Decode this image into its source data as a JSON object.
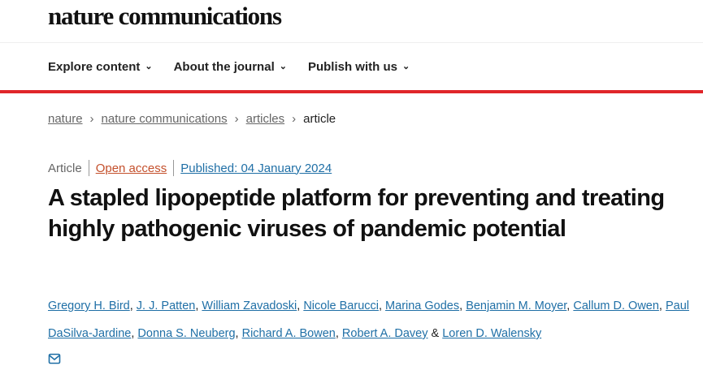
{
  "header": {
    "logo": "nature communications"
  },
  "nav": [
    {
      "label": "Explore content"
    },
    {
      "label": "About the journal"
    },
    {
      "label": "Publish with us"
    }
  ],
  "breadcrumb": [
    {
      "label": "nature"
    },
    {
      "label": "nature communications"
    },
    {
      "label": "articles"
    }
  ],
  "breadcrumb_current": "article",
  "meta": {
    "type": "Article",
    "access": "Open access",
    "published": "Published: 04 January 2024"
  },
  "title": "A stapled lipopeptide platform for preventing and treating highly pathogenic viruses of pandemic potential",
  "authors": [
    "Gregory H. Bird",
    "J. J. Patten",
    "William Zavadoski",
    "Nicole Barucci",
    "Marina Godes",
    "Benjamin M. Moyer",
    "Callum D. Owen",
    "Paul DaSilva-Jardine",
    "Donna S. Neuberg",
    "Richard A. Bowen",
    "Robert A. Davey",
    "Loren D. Walensky"
  ],
  "authors_conjunction": "&",
  "colors": {
    "accent": "#e0262a",
    "link": "#1f6fa6",
    "open_access": "#c4502c"
  }
}
